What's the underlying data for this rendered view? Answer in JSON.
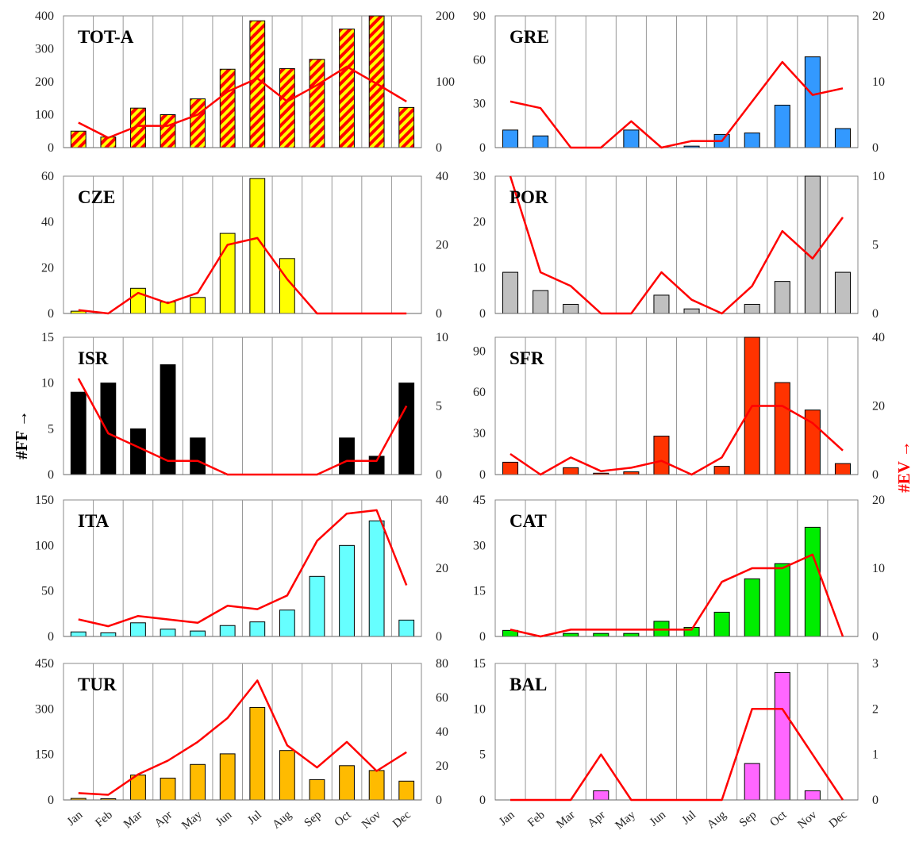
{
  "figure": {
    "left_axis_label": "#FF →",
    "right_axis_label": "#EV →",
    "left_label_color": "#000000",
    "right_label_color": "#ff0000",
    "line_color": "#ff0000",
    "bar_border_color": "#000000",
    "gridline_color": "#999999"
  },
  "chart_data": [
    {
      "title": "TOT-A",
      "type": "bar",
      "categories": [
        "Jan",
        "Feb",
        "Mar",
        "Apr",
        "May",
        "Jun",
        "Jul",
        "Aug",
        "Sep",
        "Oct",
        "Nov",
        "Dec"
      ],
      "bar_color": "#ff0000",
      "bar_pattern": "hatched-yellow-red",
      "left_ylim": [
        0,
        400
      ],
      "left_ticks": [
        0,
        100,
        200,
        300,
        400
      ],
      "right_ylim": [
        0,
        200
      ],
      "right_ticks": [
        0,
        100,
        200
      ],
      "bar_values": [
        50,
        32,
        120,
        100,
        148,
        238,
        385,
        240,
        268,
        360,
        400,
        122
      ],
      "line_values": [
        38,
        15,
        33,
        33,
        50,
        85,
        105,
        70,
        95,
        123,
        97,
        70
      ]
    },
    {
      "title": "GRE",
      "type": "bar",
      "categories": [
        "Jan",
        "Feb",
        "Mar",
        "Apr",
        "May",
        "Jun",
        "Jul",
        "Aug",
        "Sep",
        "Oct",
        "Nov",
        "Dec"
      ],
      "bar_color": "#3399ff",
      "left_ylim": [
        0,
        90
      ],
      "left_ticks": [
        0,
        30,
        60,
        90
      ],
      "right_ylim": [
        0,
        20
      ],
      "right_ticks": [
        0,
        10,
        20
      ],
      "bar_values": [
        12,
        8,
        0,
        0,
        12,
        0,
        1,
        9,
        10,
        29,
        62,
        13
      ],
      "line_values": [
        7,
        6,
        0,
        0,
        4,
        0,
        1,
        1,
        7,
        13,
        8,
        9
      ]
    },
    {
      "title": "CZE",
      "type": "bar",
      "categories": [
        "Jan",
        "Feb",
        "Mar",
        "Apr",
        "May",
        "Jun",
        "Jul",
        "Aug",
        "Sep",
        "Oct",
        "Nov",
        "Dec"
      ],
      "bar_color": "#ffff00",
      "left_ylim": [
        0,
        60
      ],
      "left_ticks": [
        0,
        20,
        40,
        60
      ],
      "right_ylim": [
        0,
        40
      ],
      "right_ticks": [
        0,
        20,
        40
      ],
      "bar_values": [
        1,
        0,
        11,
        5,
        7,
        35,
        59,
        24,
        0,
        0,
        0,
        0
      ],
      "line_values": [
        1,
        0,
        6,
        3,
        6,
        20,
        22,
        10,
        0,
        0,
        0,
        0
      ]
    },
    {
      "title": "POR",
      "type": "bar",
      "categories": [
        "Jan",
        "Feb",
        "Mar",
        "Apr",
        "May",
        "Jun",
        "Jul",
        "Aug",
        "Sep",
        "Oct",
        "Nov",
        "Dec"
      ],
      "bar_color": "#c0c0c0",
      "left_ylim": [
        0,
        30
      ],
      "left_ticks": [
        0,
        10,
        20,
        30
      ],
      "right_ylim": [
        0,
        10
      ],
      "right_ticks": [
        0,
        5,
        10
      ],
      "bar_values": [
        9,
        5,
        2,
        0,
        0,
        4,
        1,
        0,
        2,
        7,
        30,
        9
      ],
      "line_values": [
        10,
        3,
        2,
        0,
        0,
        3,
        1,
        0,
        2,
        6,
        4,
        7
      ]
    },
    {
      "title": "ISR",
      "type": "bar",
      "categories": [
        "Jan",
        "Feb",
        "Mar",
        "Apr",
        "May",
        "Jun",
        "Jul",
        "Aug",
        "Sep",
        "Oct",
        "Nov",
        "Dec"
      ],
      "bar_color": "#000000",
      "left_ylim": [
        0,
        15
      ],
      "left_ticks": [
        0,
        5,
        10,
        15
      ],
      "right_ylim": [
        0,
        10
      ],
      "right_ticks": [
        0,
        5,
        10
      ],
      "bar_values": [
        9,
        10,
        5,
        12,
        4,
        0,
        0,
        0,
        0,
        4,
        2,
        10
      ],
      "line_values": [
        7,
        3,
        2,
        1,
        1,
        0,
        0,
        0,
        0,
        1,
        1,
        5
      ]
    },
    {
      "title": "SFR",
      "type": "bar",
      "categories": [
        "Jan",
        "Feb",
        "Mar",
        "Apr",
        "May",
        "Jun",
        "Jul",
        "Aug",
        "Sep",
        "Oct",
        "Nov",
        "Dec"
      ],
      "bar_color": "#ff3300",
      "left_ylim": [
        0,
        100
      ],
      "left_ticks": [
        0,
        30,
        60,
        90
      ],
      "right_ylim": [
        0,
        40
      ],
      "right_ticks": [
        0,
        20,
        40
      ],
      "bar_values": [
        9,
        0,
        5,
        1,
        2,
        28,
        0,
        6,
        100,
        67,
        47,
        8
      ],
      "line_values": [
        6,
        0,
        5,
        1,
        2,
        4,
        0,
        5,
        20,
        20,
        15,
        7
      ]
    },
    {
      "title": "ITA",
      "type": "bar",
      "categories": [
        "Jan",
        "Feb",
        "Mar",
        "Apr",
        "May",
        "Jun",
        "Jul",
        "Aug",
        "Sep",
        "Oct",
        "Nov",
        "Dec"
      ],
      "bar_color": "#66ffff",
      "left_ylim": [
        0,
        150
      ],
      "left_ticks": [
        0,
        50,
        100,
        150
      ],
      "right_ylim": [
        0,
        40
      ],
      "right_ticks": [
        0,
        20,
        40
      ],
      "bar_values": [
        5,
        4,
        15,
        8,
        6,
        12,
        16,
        29,
        66,
        100,
        127,
        18
      ],
      "line_values": [
        5,
        3,
        6,
        5,
        4,
        9,
        8,
        12,
        28,
        36,
        37,
        15
      ]
    },
    {
      "title": "CAT",
      "type": "bar",
      "categories": [
        "Jan",
        "Feb",
        "Mar",
        "Apr",
        "May",
        "Jun",
        "Jul",
        "Aug",
        "Sep",
        "Oct",
        "Nov",
        "Dec"
      ],
      "bar_color": "#00ee00",
      "left_ylim": [
        0,
        45
      ],
      "left_ticks": [
        0,
        15,
        30,
        45
      ],
      "right_ylim": [
        0,
        20
      ],
      "right_ticks": [
        0,
        10,
        20
      ],
      "bar_values": [
        2,
        0,
        1,
        1,
        1,
        5,
        3,
        8,
        19,
        24,
        36,
        0
      ],
      "line_values": [
        1,
        0,
        1,
        1,
        1,
        1,
        1,
        8,
        10,
        10,
        12,
        0
      ]
    },
    {
      "title": "TUR",
      "type": "bar",
      "categories": [
        "Jan",
        "Feb",
        "Mar",
        "Apr",
        "May",
        "Jun",
        "Jul",
        "Aug",
        "Sep",
        "Oct",
        "Nov",
        "Dec"
      ],
      "bar_color": "#ffbb00",
      "left_ylim": [
        0,
        450
      ],
      "left_ticks": [
        0,
        150,
        300,
        450
      ],
      "right_ylim": [
        0,
        80
      ],
      "right_ticks": [
        0,
        20,
        40,
        60,
        80
      ],
      "bar_values": [
        5,
        4,
        82,
        72,
        117,
        152,
        305,
        163,
        67,
        113,
        97,
        62
      ],
      "line_values": [
        4,
        3,
        15,
        23,
        34,
        48,
        70,
        32,
        19,
        34,
        17,
        28
      ]
    },
    {
      "title": "BAL",
      "type": "bar",
      "categories": [
        "Jan",
        "Feb",
        "Mar",
        "Apr",
        "May",
        "Jun",
        "Jul",
        "Aug",
        "Sep",
        "Oct",
        "Nov",
        "Dec"
      ],
      "bar_color": "#ff66ff",
      "left_ylim": [
        0,
        15
      ],
      "left_ticks": [
        0,
        5,
        10,
        15
      ],
      "right_ylim": [
        0,
        3
      ],
      "right_ticks": [
        0,
        1,
        2,
        3
      ],
      "bar_values": [
        0,
        0,
        0,
        1,
        0,
        0,
        0,
        0,
        4,
        14,
        1,
        0
      ],
      "line_values": [
        0,
        0,
        0,
        1,
        0,
        0,
        0,
        0,
        2,
        2,
        1,
        0
      ]
    }
  ]
}
